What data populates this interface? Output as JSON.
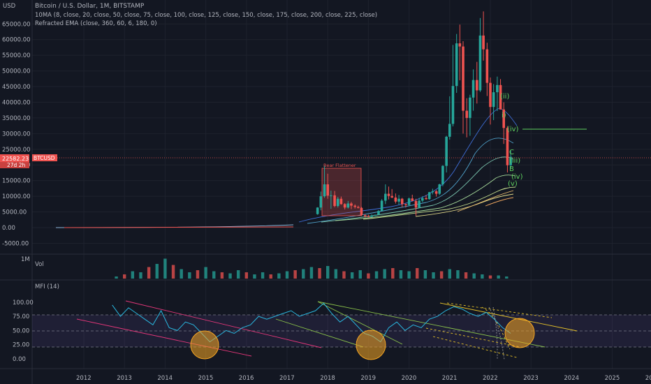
{
  "header": {
    "currency": "USD",
    "title": "Bitcoin / U.S. Dollar, 1M, BITSTAMP",
    "indicator_ma": "10MA (8, close, 20, close, 50, close, 75, close, 100, close, 125, close, 150, close, 175, close, 200, close, 225, close)",
    "indicator_ema": "Refracted EMA (close, 360, 60, 6, 180, 0)"
  },
  "price_tag": {
    "value": "22582.23",
    "countdown": "27d 2h",
    "symbol": "BTCUSD",
    "color": "#ef5350"
  },
  "annotation_box": {
    "label": "Bear Flattener"
  },
  "wave_labels": [
    "(ii)",
    "i)",
    "(iv)",
    "C",
    "(iii)",
    "B",
    "(iv)",
    "(v)"
  ],
  "volume_panel": {
    "label": "Vol",
    "scale_label": "1M"
  },
  "mfi_panel": {
    "label": "MFI (14)"
  },
  "colors": {
    "background": "#131722",
    "up": "#26a69a",
    "down": "#ef5350",
    "mfi_line": "#2ab8e0",
    "wave": "#5fd35f",
    "highlight": "#f5a623"
  },
  "chart_data": [
    {
      "type": "candlestick",
      "title": "Bitcoin / U.S. Dollar, 1M, BITSTAMP",
      "ylabel": "USD",
      "ylim": [
        -5000,
        68000
      ],
      "y_ticks": [
        "65000.00",
        "60000.00",
        "55000.00",
        "50000.00",
        "45000.00",
        "40000.00",
        "35000.00",
        "30000.00",
        "25000.00",
        "20000.00",
        "15000.00",
        "10000.00",
        "5000.00",
        "0.00",
        "-5000.00"
      ],
      "x_ticks": [
        "2012",
        "2013",
        "2014",
        "2015",
        "2016",
        "2017",
        "2018",
        "2019",
        "2020",
        "2021",
        "2022",
        "2023",
        "2024",
        "2025",
        "20"
      ],
      "last_price": 22582.23,
      "candles": [
        {
          "t": 2017.75,
          "o": 4300,
          "h": 6500,
          "l": 4100,
          "c": 6400
        },
        {
          "t": 2017.83,
          "o": 6400,
          "h": 11500,
          "l": 5500,
          "c": 10000
        },
        {
          "t": 2017.92,
          "o": 10000,
          "h": 19700,
          "l": 9500,
          "c": 13800
        },
        {
          "t": 2018.0,
          "o": 13800,
          "h": 17200,
          "l": 9200,
          "c": 10200
        },
        {
          "t": 2018.08,
          "o": 10200,
          "h": 11800,
          "l": 6000,
          "c": 10300
        },
        {
          "t": 2018.17,
          "o": 10300,
          "h": 11700,
          "l": 6500,
          "c": 6900
        },
        {
          "t": 2018.25,
          "o": 6900,
          "h": 9800,
          "l": 6400,
          "c": 9200
        },
        {
          "t": 2018.33,
          "o": 9200,
          "h": 9900,
          "l": 7300,
          "c": 7500
        },
        {
          "t": 2018.42,
          "o": 7500,
          "h": 7800,
          "l": 5800,
          "c": 6400
        },
        {
          "t": 2018.5,
          "o": 6400,
          "h": 8500,
          "l": 6100,
          "c": 7700
        },
        {
          "t": 2018.58,
          "o": 7700,
          "h": 8200,
          "l": 5900,
          "c": 7000
        },
        {
          "t": 2018.67,
          "o": 7000,
          "h": 7400,
          "l": 6100,
          "c": 6600
        },
        {
          "t": 2018.75,
          "o": 6600,
          "h": 7000,
          "l": 6100,
          "c": 6300
        },
        {
          "t": 2018.83,
          "o": 6300,
          "h": 6600,
          "l": 3700,
          "c": 4000
        },
        {
          "t": 2018.92,
          "o": 4000,
          "h": 4300,
          "l": 3200,
          "c": 3700
        },
        {
          "t": 2019.0,
          "o": 3700,
          "h": 4100,
          "l": 3400,
          "c": 3400
        },
        {
          "t": 2019.08,
          "o": 3400,
          "h": 4200,
          "l": 3400,
          "c": 3800
        },
        {
          "t": 2019.17,
          "o": 3800,
          "h": 4100,
          "l": 3700,
          "c": 4100
        },
        {
          "t": 2019.25,
          "o": 4100,
          "h": 5600,
          "l": 4100,
          "c": 5300
        },
        {
          "t": 2019.33,
          "o": 5300,
          "h": 9100,
          "l": 5300,
          "c": 8600
        },
        {
          "t": 2019.42,
          "o": 8600,
          "h": 13800,
          "l": 7500,
          "c": 10800
        },
        {
          "t": 2019.5,
          "o": 10800,
          "h": 13100,
          "l": 9000,
          "c": 10100
        },
        {
          "t": 2019.58,
          "o": 10100,
          "h": 12300,
          "l": 9400,
          "c": 9600
        },
        {
          "t": 2019.67,
          "o": 9600,
          "h": 10900,
          "l": 7700,
          "c": 8300
        },
        {
          "t": 2019.75,
          "o": 8300,
          "h": 10400,
          "l": 7300,
          "c": 9200
        },
        {
          "t": 2019.83,
          "o": 9200,
          "h": 9500,
          "l": 6500,
          "c": 7500
        },
        {
          "t": 2019.92,
          "o": 7500,
          "h": 7700,
          "l": 6400,
          "c": 7200
        },
        {
          "t": 2020.0,
          "o": 7200,
          "h": 9600,
          "l": 6900,
          "c": 9300
        },
        {
          "t": 2020.08,
          "o": 9300,
          "h": 10500,
          "l": 8500,
          "c": 8500
        },
        {
          "t": 2020.17,
          "o": 8500,
          "h": 9200,
          "l": 3800,
          "c": 6400
        },
        {
          "t": 2020.25,
          "o": 6400,
          "h": 9500,
          "l": 6200,
          "c": 8600
        },
        {
          "t": 2020.33,
          "o": 8600,
          "h": 10000,
          "l": 8100,
          "c": 9400
        },
        {
          "t": 2020.42,
          "o": 9400,
          "h": 10400,
          "l": 8900,
          "c": 9100
        },
        {
          "t": 2020.5,
          "o": 9100,
          "h": 11400,
          "l": 8900,
          "c": 11300
        },
        {
          "t": 2020.58,
          "o": 11300,
          "h": 12400,
          "l": 10600,
          "c": 11600
        },
        {
          "t": 2020.67,
          "o": 11600,
          "h": 12000,
          "l": 9900,
          "c": 10800
        },
        {
          "t": 2020.75,
          "o": 10800,
          "h": 14000,
          "l": 10400,
          "c": 13800
        },
        {
          "t": 2020.83,
          "o": 13800,
          "h": 19900,
          "l": 13200,
          "c": 19700
        },
        {
          "t": 2020.92,
          "o": 19700,
          "h": 29300,
          "l": 17600,
          "c": 29000
        },
        {
          "t": 2021.0,
          "o": 29000,
          "h": 41900,
          "l": 28100,
          "c": 33100
        },
        {
          "t": 2021.08,
          "o": 33100,
          "h": 58300,
          "l": 32300,
          "c": 45200
        },
        {
          "t": 2021.17,
          "o": 45200,
          "h": 61800,
          "l": 43000,
          "c": 58800
        },
        {
          "t": 2021.25,
          "o": 58800,
          "h": 64800,
          "l": 47000,
          "c": 57800
        },
        {
          "t": 2021.33,
          "o": 57800,
          "h": 59500,
          "l": 30000,
          "c": 37300
        },
        {
          "t": 2021.42,
          "o": 37300,
          "h": 41300,
          "l": 28800,
          "c": 35000
        },
        {
          "t": 2021.5,
          "o": 35000,
          "h": 42400,
          "l": 29300,
          "c": 41500
        },
        {
          "t": 2021.58,
          "o": 41500,
          "h": 50500,
          "l": 37300,
          "c": 47100
        },
        {
          "t": 2021.67,
          "o": 47100,
          "h": 52900,
          "l": 39600,
          "c": 43800
        },
        {
          "t": 2021.75,
          "o": 43800,
          "h": 66900,
          "l": 43300,
          "c": 61300
        },
        {
          "t": 2021.83,
          "o": 61300,
          "h": 69000,
          "l": 53300,
          "c": 56900
        },
        {
          "t": 2021.92,
          "o": 56900,
          "h": 59000,
          "l": 42000,
          "c": 46200
        },
        {
          "t": 2022.0,
          "o": 46200,
          "h": 47900,
          "l": 32900,
          "c": 38500
        },
        {
          "t": 2022.08,
          "o": 38500,
          "h": 45800,
          "l": 34300,
          "c": 43200
        },
        {
          "t": 2022.17,
          "o": 43200,
          "h": 48200,
          "l": 37200,
          "c": 45500
        },
        {
          "t": 2022.25,
          "o": 45500,
          "h": 47400,
          "l": 37700,
          "c": 37700
        },
        {
          "t": 2022.33,
          "o": 37700,
          "h": 40000,
          "l": 26700,
          "c": 31800
        },
        {
          "t": 2022.42,
          "o": 31800,
          "h": 32400,
          "l": 17600,
          "c": 19900
        },
        {
          "t": 2022.5,
          "o": 19900,
          "h": 24700,
          "l": 18800,
          "c": 22582
        }
      ]
    },
    {
      "type": "bar",
      "title": "Vol",
      "y_ticks": [
        "1M"
      ],
      "x": [
        2012.8,
        2013.0,
        2013.2,
        2013.4,
        2013.6,
        2013.8,
        2014.0,
        2014.2,
        2014.4,
        2014.6,
        2014.8,
        2015.0,
        2015.2,
        2015.4,
        2015.6,
        2015.8,
        2016.0,
        2016.2,
        2016.4,
        2016.6,
        2016.8,
        2017.0,
        2017.2,
        2017.4,
        2017.6,
        2017.8,
        2018.0,
        2018.2,
        2018.4,
        2018.6,
        2018.8,
        2019.0,
        2019.2,
        2019.4,
        2019.6,
        2019.8,
        2020.0,
        2020.2,
        2020.4,
        2020.6,
        2020.8,
        2021.0,
        2021.2,
        2021.4,
        2021.6,
        2021.8,
        2022.0,
        2022.2,
        2022.4
      ],
      "values": [
        0.1,
        0.2,
        0.35,
        0.3,
        0.55,
        0.7,
        0.95,
        0.65,
        0.45,
        0.3,
        0.4,
        0.55,
        0.35,
        0.3,
        0.25,
        0.4,
        0.3,
        0.2,
        0.3,
        0.2,
        0.25,
        0.35,
        0.4,
        0.45,
        0.55,
        0.5,
        0.6,
        0.45,
        0.35,
        0.3,
        0.4,
        0.25,
        0.35,
        0.45,
        0.5,
        0.4,
        0.35,
        0.5,
        0.4,
        0.3,
        0.35,
        0.45,
        0.4,
        0.3,
        0.25,
        0.2,
        0.15,
        0.15,
        0.1
      ]
    },
    {
      "type": "line",
      "title": "MFI (14)",
      "ylim": [
        -10,
        110
      ],
      "y_ticks": [
        "100.00",
        "75.00",
        "50.00",
        "25.00",
        "0.00"
      ],
      "series": [
        {
          "x": [
            2012.7,
            2012.9,
            2013.1,
            2013.3,
            2013.5,
            2013.7,
            2013.9,
            2014.1,
            2014.3,
            2014.5,
            2014.7,
            2014.9,
            2015.1,
            2015.3,
            2015.5,
            2015.7,
            2015.9,
            2016.1,
            2016.3,
            2016.5,
            2016.7,
            2016.9,
            2017.1,
            2017.3,
            2017.5,
            2017.7,
            2017.9,
            2018.1,
            2018.3,
            2018.5,
            2018.7,
            2018.9,
            2019.1,
            2019.3,
            2019.5,
            2019.7,
            2019.9,
            2020.1,
            2020.3,
            2020.5,
            2020.7,
            2020.9,
            2021.1,
            2021.3,
            2021.5,
            2021.7,
            2021.9,
            2022.1,
            2022.3,
            2022.5
          ],
          "values": [
            95,
            75,
            90,
            80,
            70,
            60,
            85,
            55,
            50,
            65,
            60,
            45,
            30,
            40,
            50,
            45,
            55,
            60,
            75,
            70,
            75,
            80,
            85,
            75,
            80,
            85,
            98,
            80,
            65,
            75,
            60,
            45,
            40,
            30,
            55,
            65,
            50,
            60,
            55,
            70,
            75,
            85,
            92,
            88,
            80,
            75,
            82,
            70,
            55,
            45
          ]
        }
      ]
    }
  ]
}
